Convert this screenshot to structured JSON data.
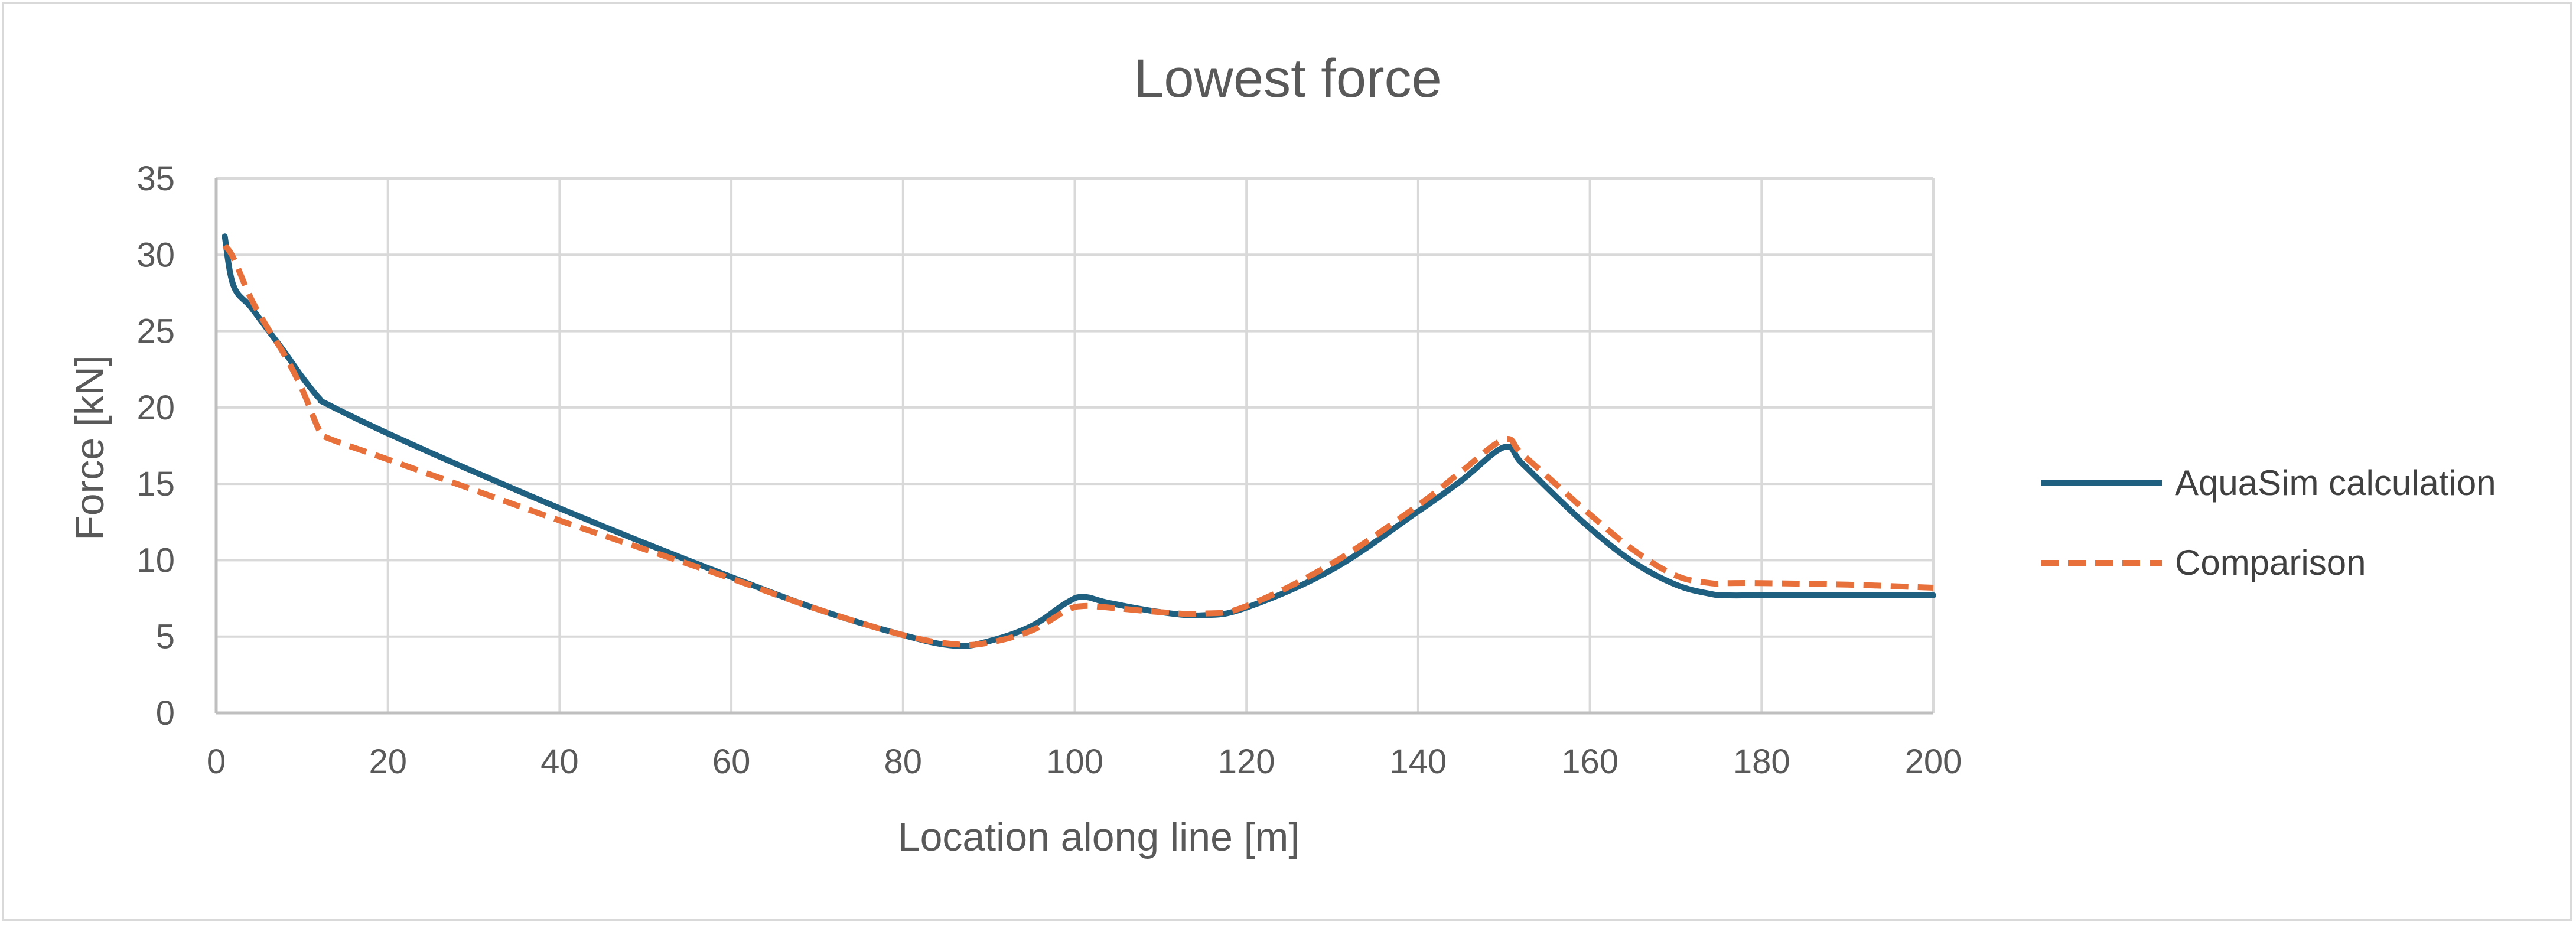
{
  "chart_data": {
    "type": "line",
    "title": "Lowest force",
    "xlabel": "Location along line [m]",
    "ylabel": "Force [kN]",
    "xlim": [
      0,
      200
    ],
    "ylim": [
      0,
      35
    ],
    "x_ticks": [
      0,
      20,
      40,
      60,
      80,
      100,
      120,
      140,
      160,
      180,
      200
    ],
    "y_ticks": [
      0,
      5,
      10,
      15,
      20,
      25,
      30,
      35
    ],
    "grid": true,
    "legend_position": "right",
    "series": [
      {
        "name": "AquaSim calculation",
        "color": "#1f5f7f",
        "style": "solid",
        "points": [
          [
            1,
            31.2
          ],
          [
            2,
            28.0
          ],
          [
            4,
            26.6
          ],
          [
            6,
            25.1
          ],
          [
            8,
            23.6
          ],
          [
            10,
            22.0
          ],
          [
            12,
            20.6
          ],
          [
            13,
            20.2
          ],
          [
            20,
            18.3
          ],
          [
            30,
            15.8
          ],
          [
            40,
            13.4
          ],
          [
            50,
            11.1
          ],
          [
            60,
            8.9
          ],
          [
            70,
            6.8
          ],
          [
            80,
            5.1
          ],
          [
            86,
            4.4
          ],
          [
            90,
            4.7
          ],
          [
            95,
            5.7
          ],
          [
            99,
            7.2
          ],
          [
            101,
            7.6
          ],
          [
            104,
            7.2
          ],
          [
            110,
            6.6
          ],
          [
            115,
            6.4
          ],
          [
            120,
            6.9
          ],
          [
            130,
            9.4
          ],
          [
            140,
            13.2
          ],
          [
            145,
            15.2
          ],
          [
            150,
            17.4
          ],
          [
            152,
            16.4
          ],
          [
            156,
            14.2
          ],
          [
            160,
            12.1
          ],
          [
            165,
            9.9
          ],
          [
            170,
            8.4
          ],
          [
            174,
            7.8
          ],
          [
            176,
            7.7
          ],
          [
            180,
            7.7
          ],
          [
            190,
            7.7
          ],
          [
            200,
            7.7
          ]
        ]
      },
      {
        "name": "Comparison",
        "color": "#e8703a",
        "style": "dashed",
        "points": [
          [
            1,
            30.6
          ],
          [
            2,
            29.8
          ],
          [
            4,
            27.2
          ],
          [
            6,
            25.2
          ],
          [
            8,
            23.4
          ],
          [
            10,
            21.2
          ],
          [
            12,
            18.5
          ],
          [
            13,
            18.0
          ],
          [
            20,
            16.6
          ],
          [
            30,
            14.6
          ],
          [
            40,
            12.6
          ],
          [
            50,
            10.7
          ],
          [
            60,
            8.8
          ],
          [
            70,
            6.8
          ],
          [
            80,
            5.1
          ],
          [
            86,
            4.5
          ],
          [
            90,
            4.6
          ],
          [
            95,
            5.4
          ],
          [
            99,
            6.7
          ],
          [
            101,
            7.0
          ],
          [
            104,
            6.9
          ],
          [
            110,
            6.6
          ],
          [
            115,
            6.5
          ],
          [
            120,
            7.0
          ],
          [
            130,
            9.8
          ],
          [
            140,
            13.6
          ],
          [
            145,
            15.8
          ],
          [
            150,
            17.9
          ],
          [
            152,
            17.0
          ],
          [
            156,
            15.0
          ],
          [
            160,
            13.0
          ],
          [
            165,
            10.7
          ],
          [
            170,
            9.0
          ],
          [
            174,
            8.5
          ],
          [
            176,
            8.5
          ],
          [
            180,
            8.5
          ],
          [
            190,
            8.4
          ],
          [
            200,
            8.2
          ]
        ]
      }
    ]
  }
}
